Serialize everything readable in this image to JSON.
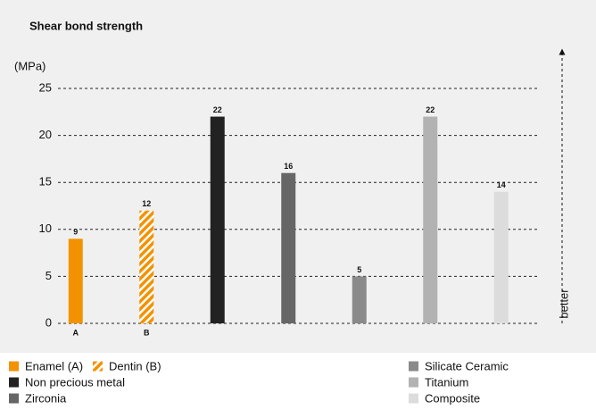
{
  "chart_data": {
    "type": "bar",
    "title": "Shear bond strength",
    "y_label": "(MPa)",
    "annotation": "better",
    "categories": [
      "A",
      "B",
      null,
      null,
      null,
      null,
      null
    ],
    "values": [
      9,
      12,
      22,
      16,
      5,
      22,
      14
    ],
    "names": [
      "Enamel (A)",
      "Dentin (B)",
      "Non precious metal",
      "Zirconia",
      "Silicate Ceramic",
      "Titanium",
      "Composite"
    ],
    "colors": [
      "#f39200",
      "#f39200",
      "#222222",
      "#666666",
      "#8a8a8a",
      "#b2b2b2",
      "#dcdcdc"
    ],
    "patterns": [
      "solid",
      "hatch",
      "solid",
      "solid",
      "solid",
      "solid",
      "solid"
    ],
    "ylim": [
      0,
      25
    ],
    "yticks": [
      0,
      5,
      10,
      15,
      20,
      25
    ],
    "grid": true
  }
}
